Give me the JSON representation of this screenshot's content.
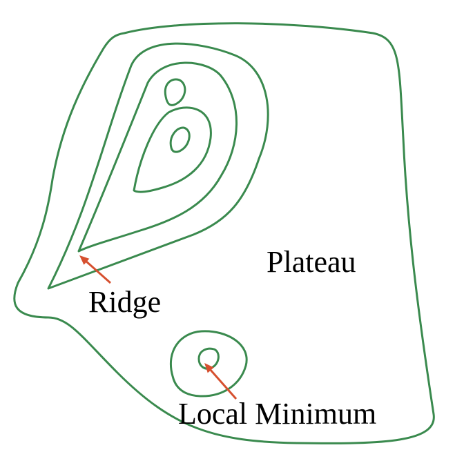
{
  "labels": {
    "plateau": "Plateau",
    "ridge": "Ridge",
    "local_minimum": "Local Minimum"
  },
  "colors": {
    "contour": "#3a8a4e",
    "arrow": "#d6502f",
    "text": "#000000"
  }
}
